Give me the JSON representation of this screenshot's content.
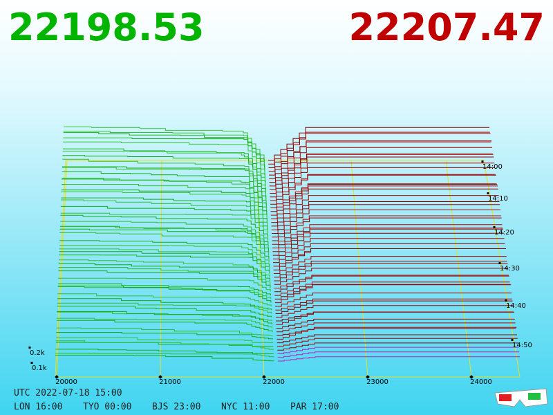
{
  "header": {
    "bid": "22198.53",
    "ask": "22207.47"
  },
  "price_axis": {
    "ticks": [
      "20000",
      "21000",
      "22000",
      "23000",
      "24000"
    ]
  },
  "depth_axis": {
    "ticks": [
      "0.2k",
      "0.1k"
    ]
  },
  "time_axis": {
    "ticks": [
      "14:00",
      "14:10",
      "14:20",
      "14:30",
      "14:40",
      "14:50"
    ]
  },
  "footer": {
    "utc": "UTC 2022-07-18 15:00",
    "clocks": [
      "LON 16:00",
      "TYO 00:00",
      "BJS 23:00",
      "NYC 11:00",
      "PAR 17:00"
    ]
  }
}
